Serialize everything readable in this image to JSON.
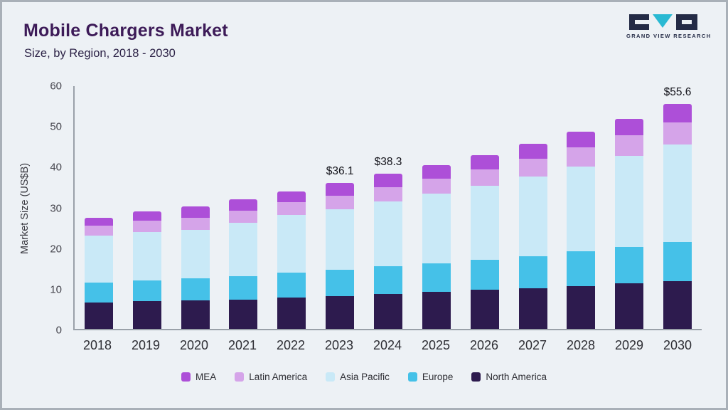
{
  "header": {
    "title": "Mobile Chargers Market",
    "subtitle": "Size, by Region, 2018 - 2030",
    "logo_text": "GRAND VIEW RESEARCH"
  },
  "chart_data": {
    "type": "bar",
    "stacked": true,
    "title": "Mobile Chargers Market Size, by Region, 2018 - 2030",
    "xlabel": "",
    "ylabel": "Market Size (US$B)",
    "ylim": [
      0,
      60
    ],
    "yticks": [
      0,
      10,
      20,
      30,
      40,
      50,
      60
    ],
    "grid": false,
    "legend_position": "bottom",
    "categories": [
      "2018",
      "2019",
      "2020",
      "2021",
      "2022",
      "2023",
      "2024",
      "2025",
      "2026",
      "2027",
      "2028",
      "2029",
      "2030"
    ],
    "series": [
      {
        "name": "North America",
        "color": "#2d1b4e",
        "values": [
          6.5,
          6.8,
          7.0,
          7.3,
          7.7,
          8.1,
          8.6,
          9.1,
          9.6,
          10.1,
          10.6,
          11.2,
          11.8
        ]
      },
      {
        "name": "Europe",
        "color": "#45c1e8",
        "values": [
          5.0,
          5.2,
          5.5,
          5.8,
          6.2,
          6.5,
          6.9,
          7.1,
          7.4,
          7.9,
          8.6,
          9.0,
          9.6
        ]
      },
      {
        "name": "Asia Pacific",
        "color": "#c9e9f7",
        "values": [
          11.5,
          12.0,
          12.0,
          13.2,
          14.2,
          14.9,
          16.0,
          17.2,
          18.4,
          19.7,
          20.9,
          22.5,
          24.2
        ]
      },
      {
        "name": "Latin America",
        "color": "#d5a4e9",
        "values": [
          2.5,
          2.7,
          3.0,
          3.0,
          3.2,
          3.5,
          3.6,
          3.8,
          4.1,
          4.4,
          4.7,
          5.2,
          5.5
        ]
      },
      {
        "name": "MEA",
        "color": "#ad4fd8",
        "values": [
          2.0,
          2.3,
          2.8,
          2.7,
          2.7,
          3.1,
          3.2,
          3.3,
          3.5,
          3.6,
          3.9,
          4.1,
          4.5
        ]
      }
    ],
    "totals": [
      27.5,
      29.0,
      30.3,
      32.0,
      34.0,
      36.1,
      38.3,
      40.5,
      43.0,
      45.7,
      48.7,
      52.0,
      55.6
    ],
    "annotations": [
      {
        "category": "2023",
        "text": "$36.1"
      },
      {
        "category": "2024",
        "text": "$38.3"
      },
      {
        "category": "2030",
        "text": "$55.6"
      }
    ],
    "legend": [
      "MEA",
      "Latin America",
      "Asia Pacific",
      "Europe",
      "North America"
    ]
  }
}
